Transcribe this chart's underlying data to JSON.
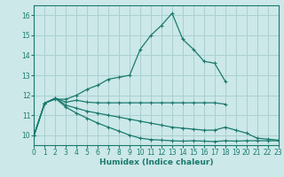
{
  "xlabel": "Humidex (Indice chaleur)",
  "xlim": [
    0,
    23
  ],
  "ylim": [
    9.5,
    16.5
  ],
  "yticks": [
    10,
    11,
    12,
    13,
    14,
    15,
    16
  ],
  "xticks": [
    0,
    1,
    2,
    3,
    4,
    5,
    6,
    7,
    8,
    9,
    10,
    11,
    12,
    13,
    14,
    15,
    16,
    17,
    18,
    19,
    20,
    21,
    22,
    23
  ],
  "background_color": "#cce8e8",
  "grid_color": "#aad0d0",
  "line_color": "#1a7a6e",
  "line1_x": [
    0,
    1,
    2,
    3,
    4,
    5,
    6,
    7,
    8,
    9,
    10,
    11,
    12,
    13,
    14,
    15,
    16,
    17,
    18
  ],
  "line1_y": [
    10.0,
    11.6,
    11.8,
    11.8,
    12.0,
    12.3,
    12.5,
    12.8,
    12.9,
    13.0,
    14.3,
    15.0,
    15.5,
    16.1,
    14.8,
    14.3,
    13.7,
    13.6,
    12.7
  ],
  "line2_x": [
    0,
    1,
    2,
    3,
    4,
    5,
    6,
    7,
    8,
    9,
    10,
    11,
    12,
    13,
    14,
    15,
    16,
    17,
    18
  ],
  "line2_y": [
    10.0,
    11.6,
    11.85,
    11.65,
    11.75,
    11.65,
    11.62,
    11.62,
    11.62,
    11.62,
    11.62,
    11.62,
    11.62,
    11.62,
    11.62,
    11.62,
    11.62,
    11.62,
    11.55
  ],
  "line3_x": [
    0,
    1,
    2,
    3,
    4,
    5,
    6,
    7,
    8,
    9,
    10,
    11,
    12,
    13,
    14,
    15,
    16,
    17,
    18,
    19,
    20,
    21,
    22,
    23
  ],
  "line3_y": [
    10.0,
    11.6,
    11.85,
    11.5,
    11.35,
    11.2,
    11.1,
    11.0,
    10.9,
    10.8,
    10.7,
    10.6,
    10.5,
    10.4,
    10.35,
    10.3,
    10.25,
    10.25,
    10.4,
    10.25,
    10.1,
    9.85,
    9.8,
    9.75
  ],
  "line4_x": [
    0,
    1,
    2,
    3,
    4,
    5,
    6,
    7,
    8,
    9,
    10,
    11,
    12,
    13,
    14,
    15,
    16,
    17,
    18,
    19,
    20,
    21,
    22,
    23
  ],
  "line4_y": [
    10.0,
    11.6,
    11.85,
    11.4,
    11.1,
    10.85,
    10.6,
    10.4,
    10.2,
    10.0,
    9.85,
    9.78,
    9.75,
    9.72,
    9.7,
    9.72,
    9.7,
    9.68,
    9.72,
    9.7,
    9.72,
    9.72,
    9.72,
    9.72
  ]
}
